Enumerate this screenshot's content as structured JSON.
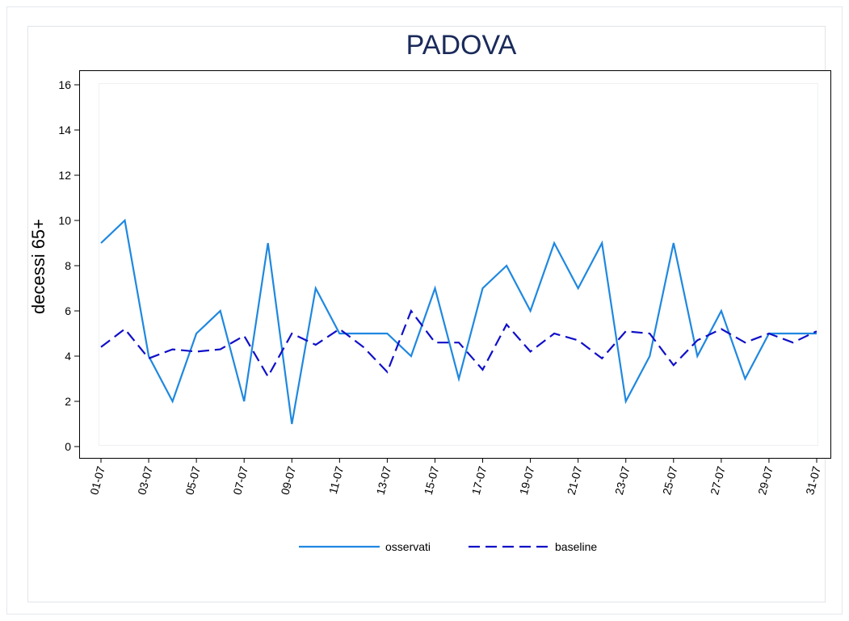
{
  "chart_data": {
    "type": "line",
    "title": "PADOVA",
    "y_label": "decessi 65+",
    "categories": [
      "01-07",
      null,
      "03-07",
      null,
      "05-07",
      null,
      "07-07",
      null,
      "09-07",
      null,
      "11-07",
      null,
      "13-07",
      null,
      "15-07",
      null,
      "17-07",
      null,
      "19-07",
      null,
      "21-07",
      null,
      "23-07",
      null,
      "25-07",
      null,
      "27-07",
      null,
      "29-07",
      null,
      "31-07"
    ],
    "series": [
      {
        "name": "osservati",
        "color": "#1f88e0",
        "dash": false,
        "values": [
          9,
          10,
          4,
          2,
          5,
          6,
          2,
          9,
          1,
          7,
          5,
          5,
          5,
          4,
          7,
          3,
          7,
          8,
          6,
          9,
          7,
          9,
          2,
          4,
          9,
          4,
          6,
          3,
          5,
          5,
          5
        ]
      },
      {
        "name": "baseline",
        "color": "#1010c8",
        "dash": true,
        "values": [
          4.4,
          5.2,
          3.9,
          4.3,
          4.2,
          4.3,
          4.9,
          3.1,
          5.0,
          4.5,
          5.2,
          4.4,
          3.3,
          6.0,
          4.6,
          4.6,
          3.4,
          5.4,
          4.2,
          5.0,
          4.7,
          3.9,
          5.1,
          5.0,
          3.6,
          4.7,
          5.2,
          4.6,
          5.0,
          4.6,
          5.1
        ]
      }
    ],
    "ylim": [
      0,
      16
    ],
    "yticks": [
      0,
      2,
      4,
      6,
      8,
      10,
      12,
      14,
      16
    ],
    "legend": "bottom"
  }
}
